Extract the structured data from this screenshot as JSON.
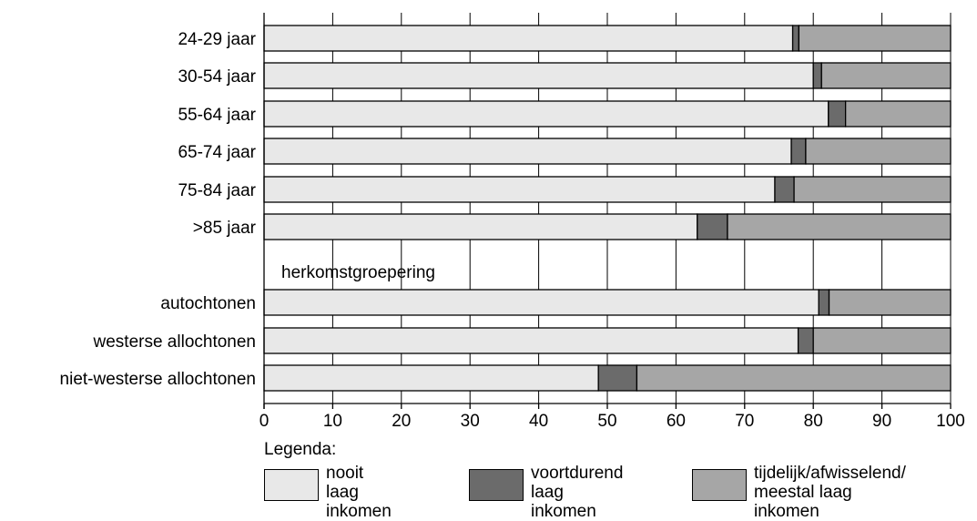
{
  "chart_data": {
    "type": "bar",
    "orientation": "horizontal",
    "stacked": true,
    "categories": [
      "24-29 jaar",
      "30-54 jaar",
      "55-64 jaar",
      "65-74 jaar",
      "75-84 jaar",
      ">85 jaar",
      "autochtonen",
      "westerse allochtonen",
      "niet-westerse allochtonen"
    ],
    "group_label": "herkomstgroepering",
    "series": [
      {
        "name": "nooit laag inkomen",
        "values": [
          77.0,
          80.0,
          82.2,
          76.8,
          74.4,
          63.1,
          80.8,
          77.8,
          48.7
        ],
        "color": "#e8e8e8"
      },
      {
        "name": "voortdurend laag inkomen",
        "values": [
          0.9,
          1.2,
          2.5,
          2.1,
          2.8,
          4.4,
          1.5,
          2.2,
          5.6
        ],
        "color": "#6b6b6b"
      },
      {
        "name": "tijdelijk/afwisselend/ meestal laag inkomen",
        "values": [
          22.1,
          18.8,
          15.3,
          21.1,
          22.8,
          32.5,
          17.7,
          20.0,
          45.7
        ],
        "color": "#a6a6a6"
      }
    ],
    "legend_title": "Legenda:",
    "legend_position": "bottom",
    "legend_labels": [
      "nooit laag\ninkomen",
      "voortdurend\nlaag inkomen",
      "tijdelijk/afwisselend/\nmeestal laag inkomen"
    ],
    "xlim": [
      0,
      100
    ],
    "xticks": [
      0,
      10,
      20,
      30,
      40,
      50,
      60,
      70,
      80,
      90,
      100
    ],
    "grid": true
  }
}
